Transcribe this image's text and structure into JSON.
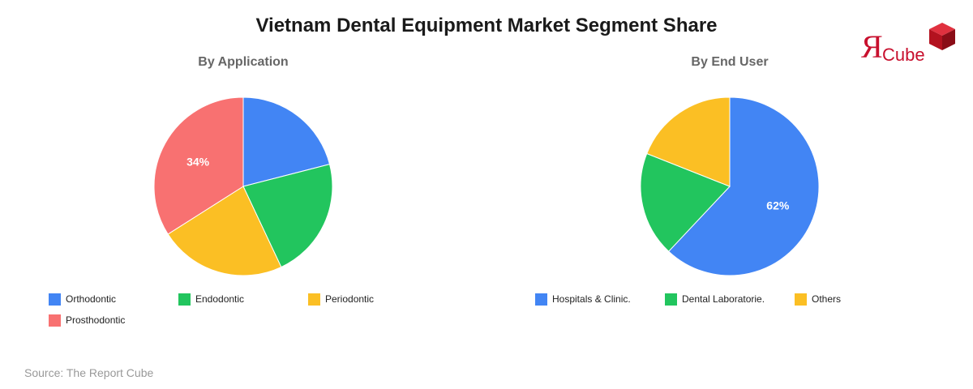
{
  "title": "Vietnam Dental Equipment Market Segment Share",
  "source": "Source: The Report Cube",
  "logo": {
    "r_glyph": "Я",
    "text": "Cube",
    "color": "#c8102e"
  },
  "chart_data": [
    {
      "type": "pie",
      "title": "By Application",
      "legend_position": "bottom",
      "slices": [
        {
          "label": "Orthodontic",
          "value": 21,
          "color": "#4285f4"
        },
        {
          "label": "Endodontic",
          "value": 22,
          "color": "#22c55e"
        },
        {
          "label": "Periodontic",
          "value": 23,
          "color": "#fbbf24"
        },
        {
          "label": "Prosthodontic",
          "value": 34,
          "color": "#f87171"
        }
      ],
      "data_labels": [
        {
          "slice": 3,
          "text": "34%"
        }
      ]
    },
    {
      "type": "pie",
      "title": "By End User",
      "legend_position": "bottom",
      "slices": [
        {
          "label": "Hospitals & Clinic.",
          "value": 62,
          "color": "#4285f4"
        },
        {
          "label": "Dental Laboratorie.",
          "value": 19,
          "color": "#22c55e"
        },
        {
          "label": "Others",
          "value": 19,
          "color": "#fbbf24"
        }
      ],
      "data_labels": [
        {
          "slice": 0,
          "text": "62%"
        }
      ]
    }
  ]
}
